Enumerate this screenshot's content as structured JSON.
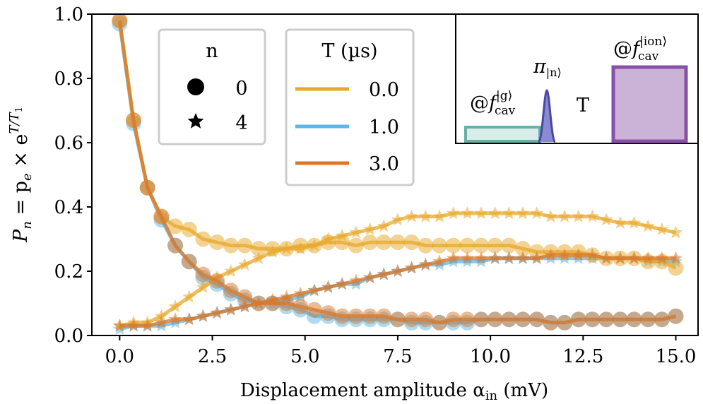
{
  "chart_data": {
    "type": "line",
    "xlabel": "Displacement amplitude α",
    "xlabel_sub": "in",
    "xlabel_unit": " (mV)",
    "ylabel": "P",
    "ylabel_parts": {
      "sub_n": "n",
      "eq": " = p",
      "sub_e": "e",
      "times": " × e",
      "sup": "T/T",
      "sup_sub": "1"
    },
    "xlim": [
      -0.75,
      15.6
    ],
    "ylim": [
      0.0,
      1.0
    ],
    "xticks": [
      0.0,
      2.5,
      5.0,
      7.5,
      10.0,
      12.5,
      15.0
    ],
    "xtick_labels": [
      "0.0",
      "2.5",
      "5.0",
      "7.5",
      "10.0",
      "12.5",
      "15.0"
    ],
    "yticks": [
      0.0,
      0.2,
      0.4,
      0.6,
      0.8,
      1.0
    ],
    "ytick_labels": [
      "0.0",
      "0.2",
      "0.4",
      "0.6",
      "0.8",
      "1.0"
    ],
    "x": [
      0.0,
      0.375,
      0.75,
      1.125,
      1.5,
      1.875,
      2.25,
      2.625,
      3.0,
      3.375,
      3.75,
      4.125,
      4.5,
      4.875,
      5.25,
      5.625,
      6.0,
      6.375,
      6.75,
      7.125,
      7.5,
      7.875,
      8.25,
      8.625,
      9.0,
      9.375,
      9.75,
      10.125,
      10.5,
      10.875,
      11.25,
      11.625,
      12.0,
      12.375,
      12.75,
      13.125,
      13.5,
      13.875,
      14.25,
      14.625,
      15.0
    ],
    "legend_n": {
      "title": "n",
      "entries": [
        {
          "marker": "circle",
          "label": "0"
        },
        {
          "marker": "star",
          "label": "4"
        }
      ]
    },
    "legend_T": {
      "title": "T (µs)",
      "entries": [
        {
          "label": "0.0",
          "color": "#E8A82A"
        },
        {
          "label": "1.0",
          "color": "#5DB7E6"
        },
        {
          "label": "3.0",
          "color": "#D9782A"
        }
      ]
    },
    "series": [
      {
        "name": "n=0, T=0.0",
        "n": "0",
        "T": "0.0",
        "marker": "circle",
        "color": "#E8A82A",
        "values": [
          0.98,
          0.67,
          0.46,
          0.37,
          0.34,
          0.33,
          0.3,
          0.29,
          0.28,
          0.28,
          0.27,
          0.27,
          0.27,
          0.28,
          0.28,
          0.29,
          0.29,
          0.28,
          0.29,
          0.29,
          0.29,
          0.29,
          0.28,
          0.28,
          0.28,
          0.28,
          0.28,
          0.28,
          0.28,
          0.27,
          0.26,
          0.26,
          0.26,
          0.26,
          0.25,
          0.24,
          0.24,
          0.24,
          0.23,
          0.23,
          0.21
        ]
      },
      {
        "name": "n=0, T=1.0",
        "n": "0",
        "T": "1.0",
        "marker": "circle",
        "color": "#5DB7E6",
        "values": [
          0.97,
          0.66,
          0.46,
          0.36,
          0.28,
          0.23,
          0.18,
          0.16,
          0.13,
          0.11,
          0.1,
          0.1,
          0.09,
          0.08,
          0.06,
          0.06,
          0.05,
          0.05,
          0.05,
          0.05,
          0.05,
          0.04,
          0.04,
          0.04,
          0.04,
          0.04,
          0.05,
          0.05,
          0.05,
          0.05,
          0.05,
          0.04,
          0.04,
          0.05,
          0.05,
          0.05,
          0.05,
          0.05,
          0.05,
          0.05,
          0.06
        ]
      },
      {
        "name": "n=0, T=3.0",
        "n": "0",
        "T": "3.0",
        "marker": "circle",
        "color": "#D9782A",
        "values": [
          0.98,
          0.67,
          0.46,
          0.37,
          0.28,
          0.23,
          0.19,
          0.17,
          0.14,
          0.12,
          0.1,
          0.1,
          0.1,
          0.09,
          0.08,
          0.07,
          0.06,
          0.06,
          0.06,
          0.06,
          0.05,
          0.05,
          0.05,
          0.04,
          0.05,
          0.05,
          0.05,
          0.05,
          0.05,
          0.05,
          0.05,
          0.04,
          0.04,
          0.05,
          0.05,
          0.05,
          0.05,
          0.05,
          0.05,
          0.05,
          0.06
        ]
      },
      {
        "name": "n=4, T=0.0",
        "n": "4",
        "T": "0.0",
        "marker": "star",
        "color": "#E8A82A",
        "values": [
          0.03,
          0.04,
          0.04,
          0.06,
          0.09,
          0.12,
          0.15,
          0.18,
          0.2,
          0.22,
          0.24,
          0.26,
          0.27,
          0.27,
          0.28,
          0.3,
          0.31,
          0.32,
          0.33,
          0.34,
          0.36,
          0.37,
          0.37,
          0.37,
          0.38,
          0.38,
          0.38,
          0.38,
          0.38,
          0.38,
          0.38,
          0.37,
          0.37,
          0.37,
          0.37,
          0.36,
          0.35,
          0.35,
          0.34,
          0.33,
          0.32
        ]
      },
      {
        "name": "n=4, T=1.0",
        "n": "4",
        "T": "1.0",
        "marker": "star",
        "color": "#5DB7E6",
        "values": [
          0.02,
          0.03,
          0.03,
          0.03,
          0.04,
          0.05,
          0.06,
          0.07,
          0.08,
          0.09,
          0.1,
          0.1,
          0.11,
          0.12,
          0.14,
          0.15,
          0.16,
          0.16,
          0.18,
          0.19,
          0.2,
          0.21,
          0.22,
          0.22,
          0.23,
          0.23,
          0.23,
          0.24,
          0.24,
          0.24,
          0.24,
          0.24,
          0.24,
          0.24,
          0.24,
          0.24,
          0.24,
          0.24,
          0.23,
          0.23,
          0.23
        ]
      },
      {
        "name": "n=4, T=3.0",
        "n": "4",
        "T": "3.0",
        "marker": "star",
        "color": "#D9782A",
        "values": [
          0.03,
          0.03,
          0.03,
          0.04,
          0.05,
          0.05,
          0.06,
          0.07,
          0.08,
          0.09,
          0.1,
          0.11,
          0.12,
          0.13,
          0.14,
          0.15,
          0.16,
          0.17,
          0.18,
          0.19,
          0.2,
          0.21,
          0.22,
          0.23,
          0.24,
          0.24,
          0.24,
          0.24,
          0.24,
          0.24,
          0.24,
          0.25,
          0.25,
          0.25,
          0.25,
          0.24,
          0.24,
          0.24,
          0.24,
          0.24,
          0.24
        ]
      }
    ],
    "inset": {
      "pulse1": {
        "at": "@",
        "f": "f",
        "sub": "cav",
        "sup": "|g⟩",
        "color": "#6AAFA5",
        "fill": "#D8ECEA"
      },
      "pi": {
        "symbol": "π",
        "sub": "|n⟩",
        "color": "#4848A8"
      },
      "delay": {
        "label": "T"
      },
      "pulse2": {
        "at": "@",
        "f": "f",
        "sub": "cav",
        "sup": "|ion⟩",
        "color": "#8850A8",
        "fill": "#CBB3D8"
      }
    }
  }
}
